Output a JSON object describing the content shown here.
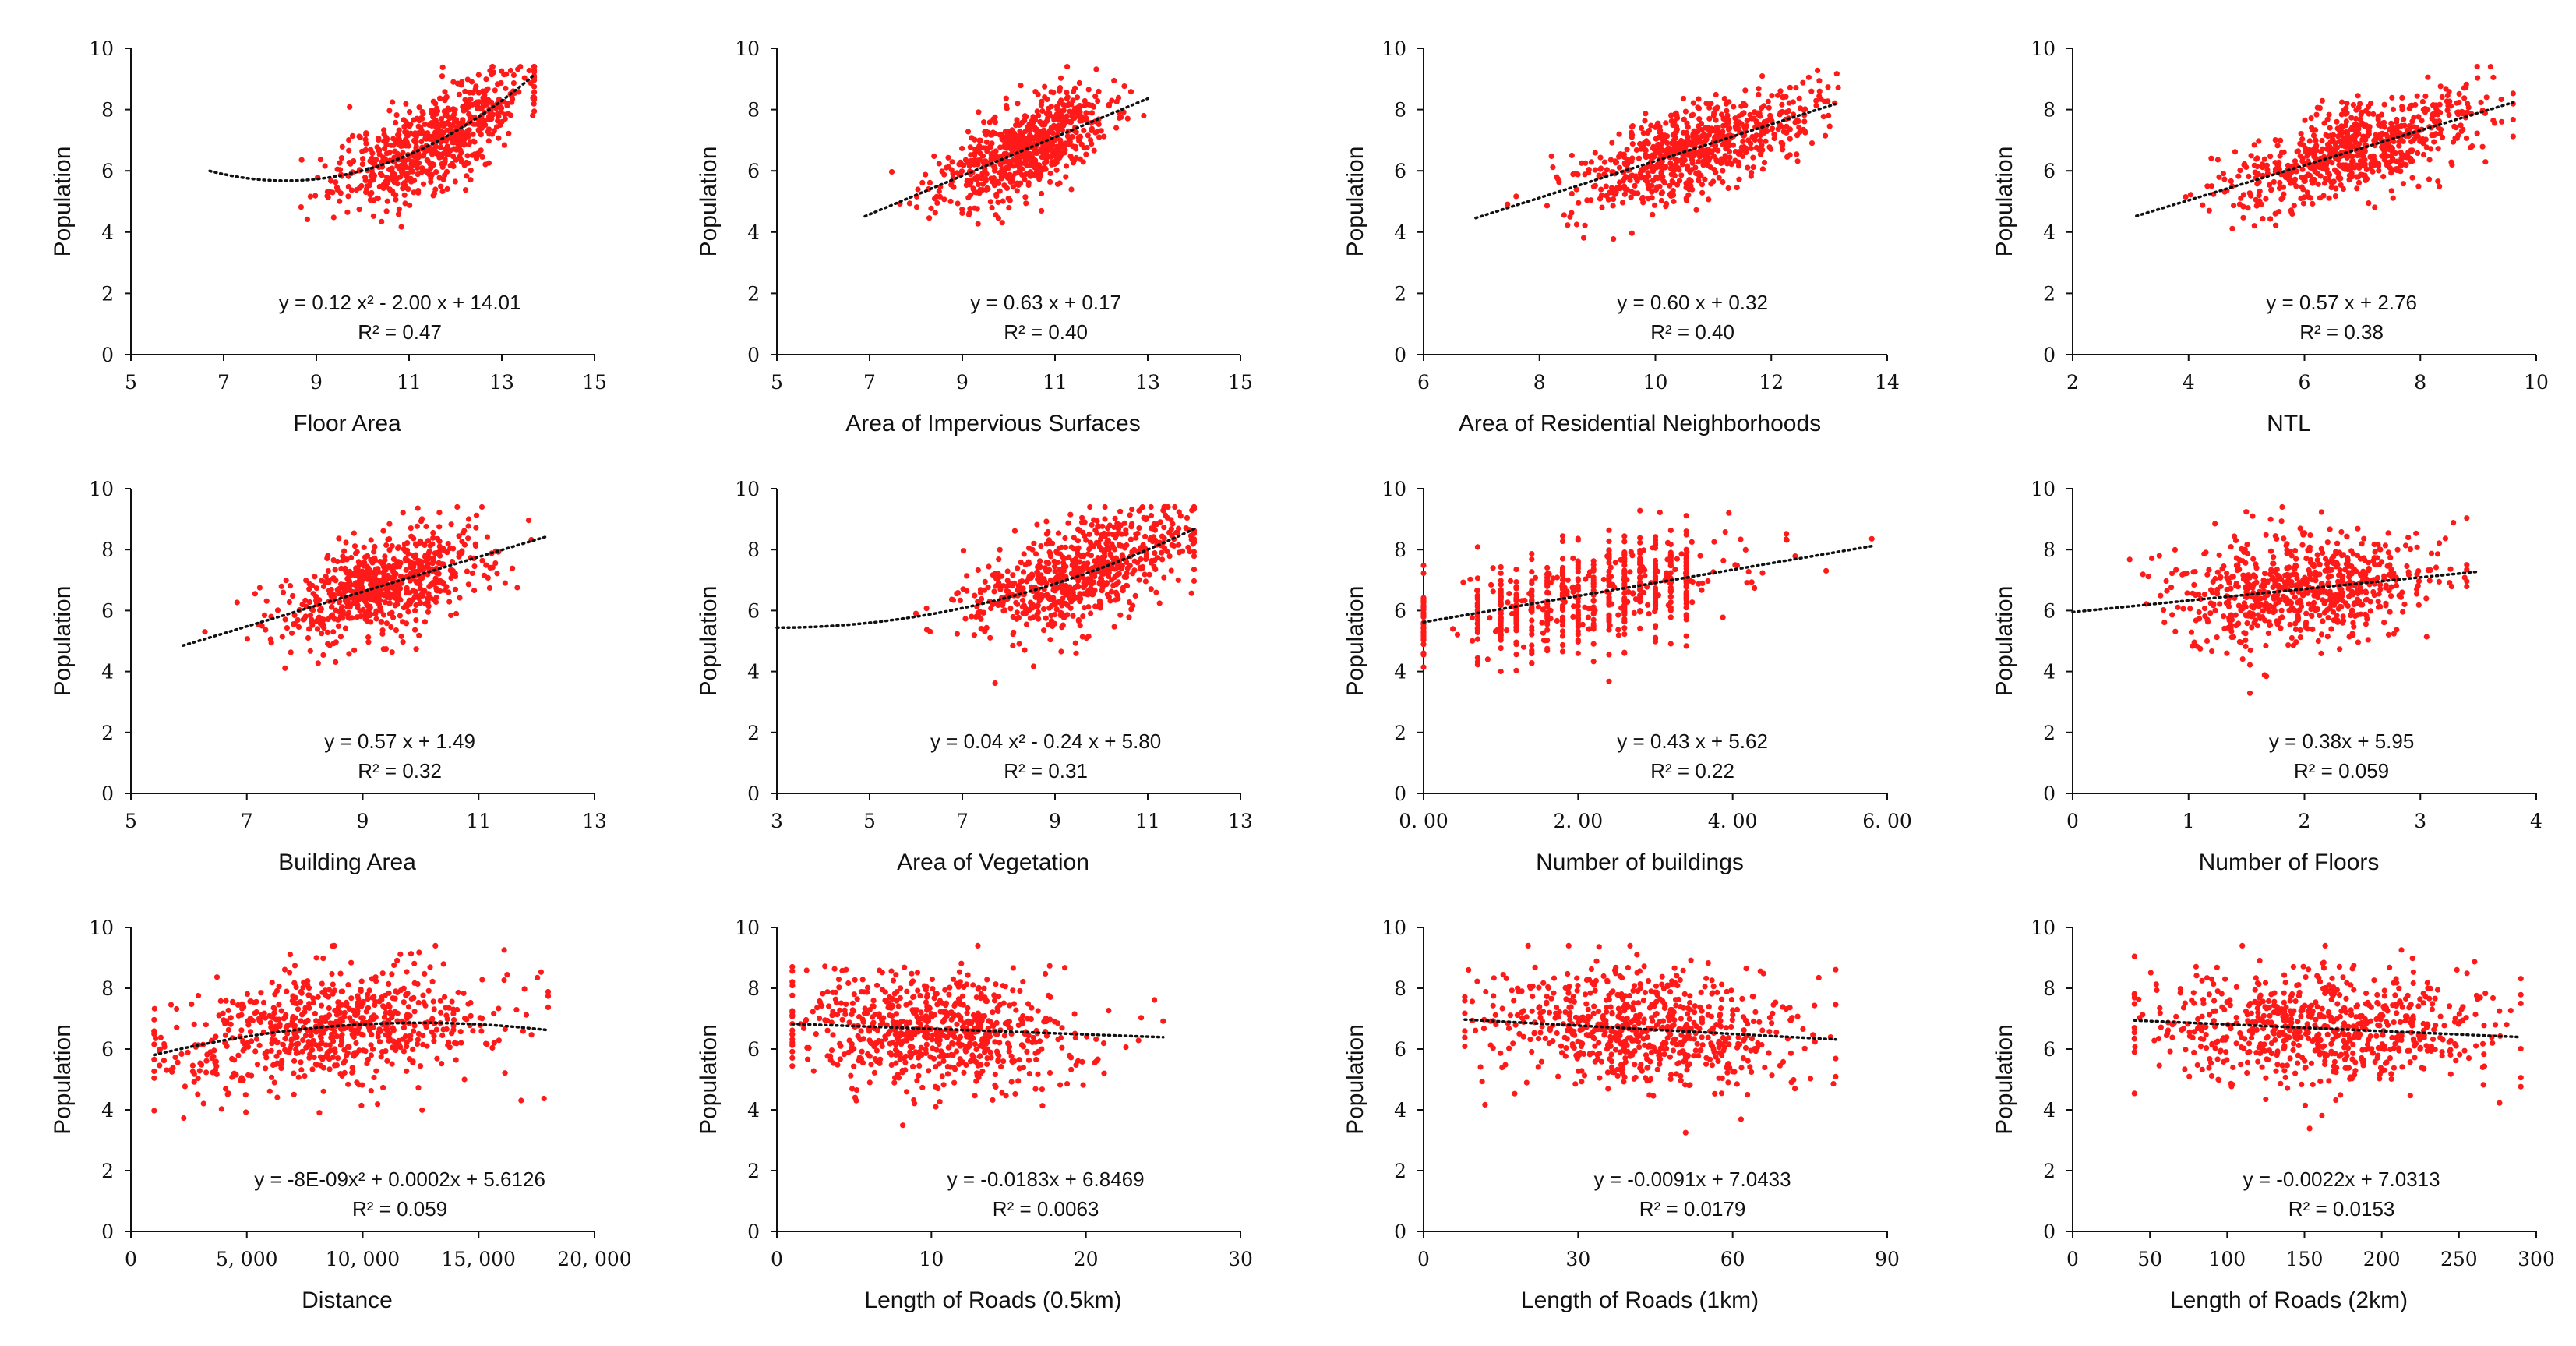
{
  "colors": {
    "points": "#ff1a1a",
    "trend": "#111111",
    "axis": "#111111"
  },
  "chart_data": [
    {
      "type": "scatter",
      "xlabel": "Floor Area",
      "ylabel": "Population",
      "xlim": [
        5,
        15
      ],
      "ylim": [
        0,
        10
      ],
      "xticks": [
        5,
        7,
        9,
        11,
        13,
        15
      ],
      "xtick_labels": [
        "5",
        "7",
        "9",
        "11",
        "13",
        "15"
      ],
      "yticks": [
        0,
        2,
        4,
        6,
        8,
        10
      ],
      "ytick_labels": [
        "0",
        "2",
        "4",
        "6",
        "8",
        "10"
      ],
      "equation": "y = 0.12 x² - 2.00 x + 14.01",
      "r2_label": "R² = 0.47",
      "trend": {
        "kind": "quad",
        "a": 0.12,
        "b": -2.0,
        "c": 14.01,
        "x_range": [
          6.7,
          13.7
        ]
      },
      "cloud": {
        "x_center": 11.5,
        "x_sd": 1.0,
        "y_noise": 0.75,
        "x_min": 6.7,
        "x_max": 13.7,
        "count": 700,
        "seed": 11
      }
    },
    {
      "type": "scatter",
      "xlabel": "Area of Impervious Surfaces",
      "ylabel": "Population",
      "xlim": [
        5,
        15
      ],
      "ylim": [
        0,
        10
      ],
      "xticks": [
        5,
        7,
        9,
        11,
        13,
        15
      ],
      "xtick_labels": [
        "5",
        "7",
        "9",
        "11",
        "13",
        "15"
      ],
      "yticks": [
        0,
        2,
        4,
        6,
        8,
        10
      ],
      "ytick_labels": [
        "0",
        "2",
        "4",
        "6",
        "8",
        "10"
      ],
      "equation": "y = 0.63 x + 0.17",
      "r2_label": "R² = 0.40",
      "trend": {
        "kind": "linear",
        "m": 0.63,
        "c": 0.17,
        "x_range": [
          6.9,
          13.0
        ]
      },
      "cloud": {
        "x_center": 10.3,
        "x_sd": 0.9,
        "y_noise": 0.7,
        "x_min": 6.9,
        "x_max": 13.3,
        "count": 700,
        "seed": 23
      }
    },
    {
      "type": "scatter",
      "xlabel": "Area of Residential Neighborhoods",
      "ylabel": "Population",
      "xlim": [
        6,
        14
      ],
      "ylim": [
        0,
        10
      ],
      "xticks": [
        6,
        8,
        10,
        12,
        14
      ],
      "xtick_labels": [
        "6",
        "8",
        "10",
        "12",
        "14"
      ],
      "yticks": [
        0,
        2,
        4,
        6,
        8,
        10
      ],
      "ytick_labels": [
        "0",
        "2",
        "4",
        "6",
        "8",
        "10"
      ],
      "equation": "y = 0.60 x + 0.32",
      "r2_label": "R² = 0.40",
      "trend": {
        "kind": "linear",
        "m": 0.6,
        "c": 0.32,
        "x_range": [
          6.9,
          13.1
        ]
      },
      "cloud": {
        "x_center": 10.7,
        "x_sd": 1.0,
        "y_noise": 0.72,
        "x_min": 6.9,
        "x_max": 13.4,
        "count": 700,
        "seed": 37
      }
    },
    {
      "type": "scatter",
      "xlabel": "NTL",
      "ylabel": "Population",
      "xlim": [
        2,
        10
      ],
      "ylim": [
        0,
        10
      ],
      "xticks": [
        2,
        4,
        6,
        8,
        10
      ],
      "xtick_labels": [
        "2",
        "4",
        "6",
        "8",
        "10"
      ],
      "yticks": [
        0,
        2,
        4,
        6,
        8,
        10
      ],
      "ytick_labels": [
        "0",
        "2",
        "4",
        "6",
        "8",
        "10"
      ],
      "equation": "y = 0.57 x + 2.76",
      "r2_label": "R² = 0.38",
      "trend": {
        "kind": "linear",
        "m": 0.57,
        "c": 2.76,
        "x_range": [
          3.1,
          9.6
        ]
      },
      "cloud": {
        "x_center": 6.9,
        "x_sd": 1.1,
        "y_noise": 0.72,
        "x_min": 3.1,
        "x_max": 9.6,
        "count": 700,
        "seed": 41
      }
    },
    {
      "type": "scatter",
      "xlabel": "Building Area",
      "ylabel": "Population",
      "xlim": [
        5,
        13
      ],
      "ylim": [
        0,
        10
      ],
      "xticks": [
        5,
        7,
        9,
        11,
        13
      ],
      "xtick_labels": [
        "5",
        "7",
        "9",
        "11",
        "13"
      ],
      "yticks": [
        0,
        2,
        4,
        6,
        8,
        10
      ],
      "ytick_labels": [
        "0",
        "2",
        "4",
        "6",
        "8",
        "10"
      ],
      "equation": "y = 0.57 x + 1.49",
      "r2_label": "R² = 0.32",
      "trend": {
        "kind": "linear",
        "m": 0.57,
        "c": 1.49,
        "x_range": [
          5.9,
          12.2
        ]
      },
      "cloud": {
        "x_center": 9.4,
        "x_sd": 0.9,
        "y_noise": 0.8,
        "x_min": 5.9,
        "x_max": 12.2,
        "count": 700,
        "seed": 53
      }
    },
    {
      "type": "scatter",
      "xlabel": "Area of Vegetation",
      "ylabel": "Population",
      "xlim": [
        3,
        13
      ],
      "ylim": [
        0,
        10
      ],
      "xticks": [
        3,
        5,
        7,
        9,
        11,
        13
      ],
      "xtick_labels": [
        "3",
        "5",
        "7",
        "9",
        "11",
        "13"
      ],
      "yticks": [
        0,
        2,
        4,
        6,
        8,
        10
      ],
      "ytick_labels": [
        "0",
        "2",
        "4",
        "6",
        "8",
        "10"
      ],
      "equation": "y = 0.04 x² - 0.24 x + 5.80",
      "r2_label": "R² = 0.31",
      "trend": {
        "kind": "quad",
        "a": 0.04,
        "b": -0.24,
        "c": 5.8,
        "x_range": [
          3.0,
          12.0
        ]
      },
      "cloud": {
        "x_center": 9.5,
        "x_sd": 1.2,
        "y_noise": 0.8,
        "x_min": 4.0,
        "x_max": 12.0,
        "count": 700,
        "seed": 67
      }
    },
    {
      "type": "scatter",
      "xlabel": "Number of buildings",
      "ylabel": "Population",
      "xlim": [
        0,
        6
      ],
      "ylim": [
        0,
        10
      ],
      "xticks": [
        0,
        2,
        4,
        6
      ],
      "xtick_labels": [
        "0. 00",
        "2. 00",
        "4. 00",
        "6. 00"
      ],
      "yticks": [
        0,
        2,
        4,
        6,
        8,
        10
      ],
      "ytick_labels": [
        "0",
        "2",
        "4",
        "6",
        "8",
        "10"
      ],
      "equation": "y = 0.43 x + 5.62",
      "r2_label": "R² = 0.22",
      "trend": {
        "kind": "linear",
        "m": 0.43,
        "c": 5.62,
        "x_range": [
          0.0,
          5.8
        ]
      },
      "cloud": {
        "x_center": 2.4,
        "x_sd": 1.0,
        "y_noise": 0.85,
        "x_min": 0.0,
        "x_max": 5.8,
        "count": 700,
        "seed": 79,
        "discrete": true
      }
    },
    {
      "type": "scatter",
      "xlabel": "Number of Floors",
      "ylabel": "Population",
      "xlim": [
        0,
        4
      ],
      "ylim": [
        0,
        10
      ],
      "xticks": [
        0,
        1,
        2,
        3,
        4
      ],
      "xtick_labels": [
        "0",
        "1",
        "2",
        "3",
        "4"
      ],
      "yticks": [
        0,
        2,
        4,
        6,
        8,
        10
      ],
      "ytick_labels": [
        "0",
        "2",
        "4",
        "6",
        "8",
        "10"
      ],
      "equation": "y = 0.38x + 5.95",
      "r2_label": "R² = 0.059",
      "trend": {
        "kind": "linear",
        "m": 0.38,
        "c": 5.95,
        "x_range": [
          0.0,
          3.5
        ]
      },
      "cloud": {
        "x_center": 2.0,
        "x_sd": 0.55,
        "y_noise": 0.9,
        "x_min": 0.0,
        "x_max": 3.4,
        "count": 700,
        "seed": 89
      }
    },
    {
      "type": "scatter",
      "xlabel": "Distance",
      "ylabel": "Population",
      "xlim": [
        0,
        20000
      ],
      "ylim": [
        0,
        10
      ],
      "xticks": [
        0,
        5000,
        10000,
        15000,
        20000
      ],
      "xtick_labels": [
        "0",
        "5, 000",
        "10, 000",
        "15, 000",
        "20, 000"
      ],
      "yticks": [
        0,
        2,
        4,
        6,
        8,
        10
      ],
      "ytick_labels": [
        "0",
        "2",
        "4",
        "6",
        "8",
        "10"
      ],
      "equation": "y = -8E-09x² + 0.0002x + 5.6126",
      "r2_label": "R² = 0.059",
      "trend": {
        "kind": "quad",
        "a": -8e-09,
        "b": 0.0002,
        "c": 5.6126,
        "x_range": [
          1000,
          18000
        ]
      },
      "cloud": {
        "x_center": 8500,
        "x_sd": 3800,
        "y_noise": 0.95,
        "x_min": 1000,
        "x_max": 18000,
        "count": 700,
        "seed": 97
      }
    },
    {
      "type": "scatter",
      "xlabel": "Length of Roads (0.5km)",
      "ylabel": "Population",
      "xlim": [
        0,
        30
      ],
      "ylim": [
        0,
        10
      ],
      "xticks": [
        0,
        10,
        20,
        30
      ],
      "xtick_labels": [
        "0",
        "10",
        "20",
        "30"
      ],
      "yticks": [
        0,
        2,
        4,
        6,
        8,
        10
      ],
      "ytick_labels": [
        "0",
        "2",
        "4",
        "6",
        "8",
        "10"
      ],
      "equation": "y = -0.0183x + 6.8469",
      "r2_label": "R² = 0.0063",
      "trend": {
        "kind": "linear",
        "m": -0.0183,
        "c": 6.8469,
        "x_range": [
          1.0,
          25.0
        ]
      },
      "cloud": {
        "x_center": 10.0,
        "x_sd": 4.5,
        "y_noise": 0.95,
        "x_min": 1.0,
        "x_max": 25.0,
        "count": 700,
        "seed": 101
      }
    },
    {
      "type": "scatter",
      "xlabel": "Length of Roads (1km)",
      "ylabel": "Population",
      "xlim": [
        0,
        90
      ],
      "ylim": [
        0,
        10
      ],
      "xticks": [
        0,
        30,
        60,
        90
      ],
      "xtick_labels": [
        "0",
        "30",
        "60",
        "90"
      ],
      "yticks": [
        0,
        2,
        4,
        6,
        8,
        10
      ],
      "ytick_labels": [
        "0",
        "2",
        "4",
        "6",
        "8",
        "10"
      ],
      "equation": "y = -0.0091x + 7.0433",
      "r2_label": "R² = 0.0179",
      "trend": {
        "kind": "linear",
        "m": -0.0091,
        "c": 7.0433,
        "x_range": [
          8,
          80
        ]
      },
      "cloud": {
        "x_center": 42,
        "x_sd": 15,
        "y_noise": 0.95,
        "x_min": 8,
        "x_max": 80,
        "count": 700,
        "seed": 113
      }
    },
    {
      "type": "scatter",
      "xlabel": "Length of Roads (2km)",
      "ylabel": "Population",
      "xlim": [
        0,
        300
      ],
      "ylim": [
        0,
        10
      ],
      "xticks": [
        0,
        50,
        100,
        150,
        200,
        250,
        300
      ],
      "xtick_labels": [
        "0",
        "50",
        "100",
        "150",
        "200",
        "250",
        "300"
      ],
      "yticks": [
        0,
        2,
        4,
        6,
        8,
        10
      ],
      "ytick_labels": [
        "0",
        "2",
        "4",
        "6",
        "8",
        "10"
      ],
      "equation": "y = -0.0022x + 7.0313",
      "r2_label": "R² = 0.0153",
      "trend": {
        "kind": "linear",
        "m": -0.0022,
        "c": 7.0313,
        "x_range": [
          40,
          290
        ]
      },
      "cloud": {
        "x_center": 165,
        "x_sd": 55,
        "y_noise": 0.95,
        "x_min": 40,
        "x_max": 290,
        "count": 700,
        "seed": 127
      }
    }
  ]
}
